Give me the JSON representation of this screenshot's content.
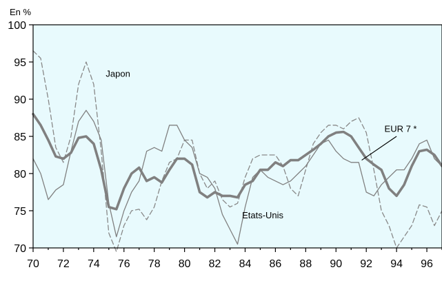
{
  "chart_data": {
    "type": "line",
    "title": "",
    "unit_label": "En %",
    "xlabel": "",
    "ylabel": "",
    "xlim": [
      70,
      97
    ],
    "ylim": [
      70,
      100
    ],
    "x_ticks": [
      70,
      72,
      74,
      76,
      78,
      80,
      82,
      84,
      86,
      88,
      90,
      92,
      94,
      96
    ],
    "y_ticks": [
      70,
      75,
      80,
      85,
      90,
      95,
      100
    ],
    "grid": false,
    "legend": "none",
    "background_color": "#e8fafd",
    "series": [
      {
        "name": "EUR 7 *",
        "style": "thick",
        "color": "#808080",
        "x": [
          70.0,
          70.5,
          71.0,
          71.5,
          72.0,
          72.5,
          73.0,
          73.5,
          74.0,
          74.5,
          75.0,
          75.5,
          76.0,
          76.5,
          77.0,
          77.5,
          78.0,
          78.5,
          79.0,
          79.5,
          80.0,
          80.5,
          81.0,
          81.5,
          82.0,
          82.5,
          83.0,
          83.5,
          84.0,
          84.5,
          85.0,
          85.5,
          86.0,
          86.5,
          87.0,
          87.5,
          88.0,
          88.5,
          89.0,
          89.5,
          90.0,
          90.5,
          91.0,
          91.5,
          92.0,
          92.5,
          93.0,
          93.5,
          94.0,
          94.5,
          95.0,
          95.5,
          96.0,
          96.5,
          97.0
        ],
        "values": [
          88.0,
          86.5,
          84.5,
          82.3,
          82.0,
          82.8,
          84.8,
          85.0,
          84.0,
          80.5,
          75.5,
          75.2,
          78.0,
          80.0,
          80.8,
          79.0,
          79.5,
          78.8,
          80.5,
          82.0,
          82.0,
          81.2,
          77.5,
          76.8,
          77.5,
          77.0,
          77.0,
          76.8,
          78.5,
          79.0,
          80.5,
          80.5,
          81.5,
          81.0,
          81.8,
          81.8,
          82.5,
          83.2,
          84.0,
          85.0,
          85.5,
          85.6,
          85.0,
          83.5,
          82.0,
          81.2,
          80.5,
          78.0,
          77.0,
          78.5,
          81.0,
          83.0,
          83.2,
          82.5,
          81.0
        ]
      },
      {
        "name": "Japon",
        "style": "dashed",
        "color": "#888888",
        "x": [
          70.0,
          70.5,
          71.0,
          71.5,
          72.0,
          72.5,
          73.0,
          73.5,
          74.0,
          74.5,
          75.0,
          75.5,
          76.0,
          76.5,
          77.0,
          77.5,
          78.0,
          78.5,
          79.0,
          79.5,
          80.0,
          80.5,
          81.0,
          81.5,
          82.0,
          82.5,
          83.0,
          83.5,
          84.0,
          84.5,
          85.0,
          85.5,
          86.0,
          86.5,
          87.0,
          87.5,
          88.0,
          88.5,
          89.0,
          89.5,
          90.0,
          90.5,
          91.0,
          91.5,
          92.0,
          92.5,
          93.0,
          93.5,
          94.0,
          94.5,
          95.0,
          95.5,
          96.0,
          96.5,
          97.0
        ],
        "values": [
          96.5,
          95.5,
          90.0,
          83.5,
          81.5,
          85.0,
          92.0,
          95.0,
          92.0,
          83.0,
          72.0,
          69.5,
          73.0,
          75.0,
          75.2,
          73.8,
          75.5,
          79.0,
          81.5,
          82.0,
          84.5,
          84.5,
          80.0,
          78.0,
          79.0,
          76.5,
          75.5,
          76.0,
          79.5,
          82.0,
          82.5,
          82.5,
          82.5,
          81.0,
          78.0,
          77.0,
          80.5,
          84.0,
          85.5,
          86.5,
          86.5,
          86.0,
          87.0,
          87.5,
          85.5,
          80.5,
          75.0,
          73.0,
          70.0,
          71.5,
          73.0,
          75.8,
          75.5,
          73.0,
          75.0
        ]
      },
      {
        "name": "Etats-Unis",
        "style": "thin",
        "color": "#808080",
        "x": [
          70.0,
          70.5,
          71.0,
          71.5,
          72.0,
          72.5,
          73.0,
          73.5,
          74.0,
          74.5,
          75.0,
          75.5,
          76.0,
          76.5,
          77.0,
          77.5,
          78.0,
          78.5,
          79.0,
          79.5,
          80.0,
          80.5,
          81.0,
          81.5,
          82.0,
          82.5,
          83.0,
          83.5,
          84.0,
          84.5,
          85.0,
          85.5,
          86.0,
          86.5,
          87.0,
          87.5,
          88.0,
          88.5,
          89.0,
          89.5,
          90.0,
          90.5,
          91.0,
          91.5,
          92.0,
          92.5,
          93.0,
          93.5,
          94.0,
          94.5,
          95.0,
          95.5,
          96.0,
          96.5,
          97.0
        ],
        "values": [
          82.0,
          80.0,
          76.5,
          77.8,
          78.5,
          83.0,
          87.0,
          88.5,
          87.0,
          84.5,
          76.0,
          71.5,
          75.0,
          77.5,
          79.0,
          83.0,
          83.5,
          83.0,
          86.5,
          86.5,
          84.5,
          83.5,
          80.0,
          79.5,
          78.0,
          74.5,
          72.5,
          70.5,
          75.5,
          79.5,
          80.5,
          79.5,
          79.0,
          78.5,
          79.0,
          80.0,
          81.0,
          82.5,
          84.0,
          84.5,
          83.0,
          82.0,
          81.5,
          81.5,
          77.5,
          77.0,
          78.5,
          79.5,
          80.5,
          80.5,
          82.0,
          84.0,
          84.5,
          82.0,
          81.0
        ]
      }
    ],
    "annotations": [
      {
        "text": "Japon",
        "series": "Japon"
      },
      {
        "text": "EUR 7 *",
        "series": "EUR 7 *"
      },
      {
        "text": "Etats-Unis",
        "series": "Etats-Unis"
      }
    ]
  }
}
